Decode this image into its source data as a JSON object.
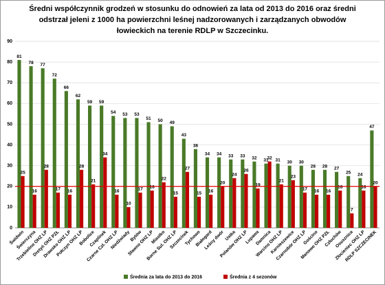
{
  "chart_data": {
    "type": "bar",
    "title": [
      "Średni współczynnik grodzeń w stosunku do odnowień za lata od 2013 do 2016 oraz średni",
      "odstrzał jeleni z 1000 ha powierzchni leśnej nadzorowanych i zarządzanych obwodów",
      "łowieckich na terenie RDLP w Szczecinku."
    ],
    "categories": [
      "Świdwin",
      "Świerczyna",
      "Trzebielino OHZ LP",
      "Dretyń OHZ PZŁ",
      "Drawsko OHZ LP",
      "Połczyn OHZ LP",
      "Bobolice",
      "Czaplinek",
      "Czarne Czł. OHZ LP",
      "Niedźwiady",
      "Bytów",
      "Sławno OHZ LP",
      "Miastko",
      "Borne Sul. OHZ LP",
      "Szczecinek",
      "Tychowo",
      "Białogard",
      "Leśny dwór",
      "Ustka",
      "Polanów OHZ LP",
      "Lupawa",
      "Damnica",
      "Warcino OHZ LP",
      "Karnieszewice",
      "Czarnobór OHZ LP",
      "Gościno",
      "Manowo OHZ PZŁ",
      "Człuchów",
      "Osusznica",
      "Złocieniec OHZ LP",
      "RDLP SZCZECINEK"
    ],
    "series": [
      {
        "name": "Średnia za lata do 2013 do 2016",
        "color": "#4a7a28",
        "values": [
          81,
          78,
          77,
          72,
          66,
          62,
          59,
          59,
          54,
          53,
          53,
          51,
          50,
          49,
          43,
          38,
          34,
          34,
          33,
          33,
          32,
          31,
          31,
          30,
          30,
          28,
          28,
          27,
          25,
          24,
          47
        ]
      },
      {
        "name": "Średnia z 4 sezonów",
        "color": "#c00000",
        "values": [
          25,
          16,
          28,
          17,
          16,
          28,
          21,
          34,
          16,
          10,
          17,
          18,
          22,
          15,
          27,
          15,
          16,
          20,
          24,
          26,
          19,
          32,
          21,
          23,
          17,
          16,
          16,
          18,
          7,
          18,
          20
        ]
      }
    ],
    "ref_line": {
      "value": 20,
      "color": "#e00000"
    },
    "ylim": [
      0,
      90
    ],
    "yticks": [
      0,
      10,
      20,
      30,
      40,
      50,
      60,
      70,
      80,
      90
    ],
    "grid": true,
    "legend": "bottom"
  }
}
